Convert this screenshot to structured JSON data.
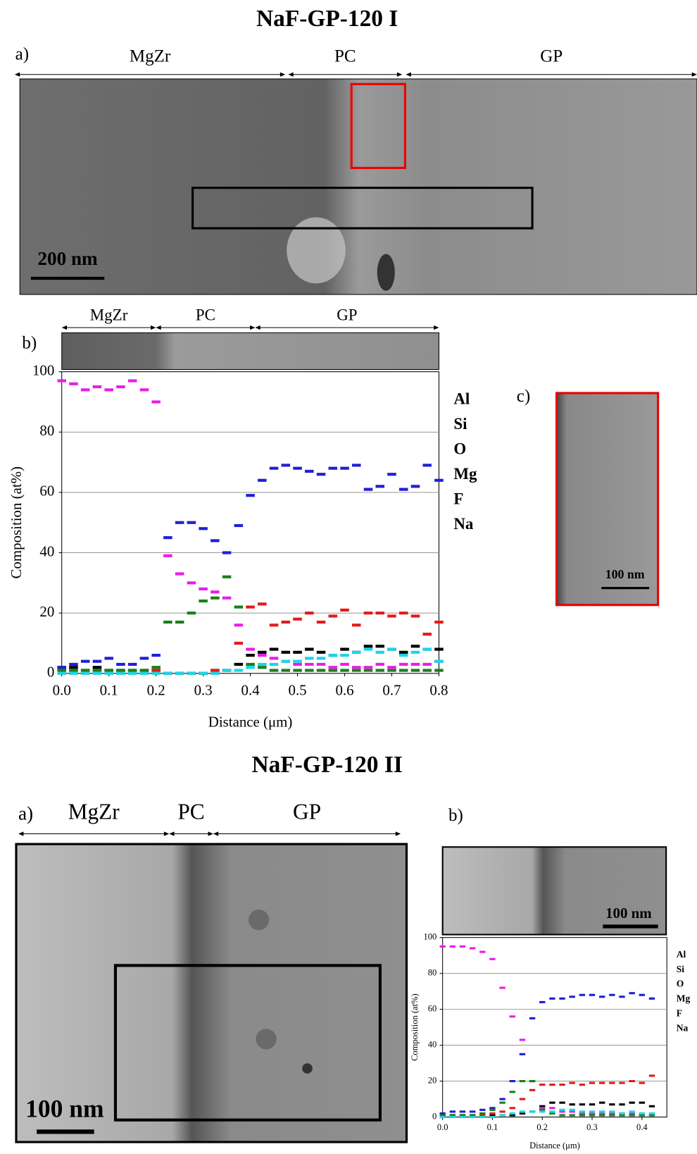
{
  "sections": [
    {
      "title": "NaF-GP-120 I",
      "panels": {
        "a": {
          "label": "a)",
          "regions": [
            "MgZr",
            "PC",
            "GP"
          ],
          "scale_bar": "200 nm"
        },
        "b": {
          "label": "b)",
          "regions": [
            "MgZr",
            "PC",
            "GP"
          ]
        },
        "c": {
          "label": "c)",
          "scale_bar": "100 nm"
        }
      }
    },
    {
      "title": "NaF-GP-120 II",
      "panels": {
        "a": {
          "label": "a)",
          "regions": [
            "MgZr",
            "PC",
            "GP"
          ],
          "scale_bar": "100 nm"
        },
        "b": {
          "label": "b)",
          "scale_bar": "100 nm"
        }
      }
    }
  ],
  "chart_data": [
    {
      "type": "scatter",
      "ylabel": "Composition (at%)",
      "xlabel": "Distance (μm)",
      "xlim": [
        0,
        0.8
      ],
      "ylim": [
        0,
        100
      ],
      "xticks": [
        {
          "value": 0,
          "label": "0.0"
        },
        0.1,
        0.2,
        0.3,
        0.4,
        0.5,
        0.6,
        0.7,
        0.8
      ],
      "yticks": [
        0,
        20,
        40,
        60,
        80,
        100
      ],
      "grid": true,
      "x": [
        0,
        0.025,
        0.05,
        0.075,
        0.1,
        0.125,
        0.15,
        0.175,
        0.2,
        0.225,
        0.25,
        0.275,
        0.3,
        0.325,
        0.35,
        0.375,
        0.4,
        0.425,
        0.45,
        0.475,
        0.5,
        0.525,
        0.55,
        0.575,
        0.6,
        0.625,
        0.65,
        0.675,
        0.7,
        0.725,
        0.75,
        0.775,
        0.8
      ],
      "series": [
        {
          "name": "Al",
          "color": "#000000",
          "values": [
            2,
            2,
            1,
            2,
            1,
            1,
            1,
            1,
            1,
            0,
            0,
            0,
            0,
            1,
            1,
            3,
            6,
            7,
            8,
            7,
            7,
            8,
            7,
            6,
            8,
            7,
            9,
            9,
            8,
            7,
            9,
            8,
            8
          ]
        },
        {
          "name": "Si",
          "color": "#e31a1c",
          "values": [
            1,
            1,
            1,
            1,
            1,
            1,
            1,
            1,
            1,
            0,
            0,
            0,
            0,
            1,
            1,
            10,
            22,
            23,
            16,
            17,
            18,
            20,
            17,
            19,
            21,
            16,
            20,
            20,
            19,
            20,
            19,
            13,
            17
          ]
        },
        {
          "name": "O",
          "color": "#1f1fd6",
          "values": [
            2,
            3,
            4,
            4,
            5,
            3,
            3,
            5,
            6,
            45,
            50,
            50,
            48,
            44,
            40,
            49,
            59,
            64,
            68,
            69,
            68,
            67,
            66,
            68,
            68,
            69,
            61,
            62,
            66,
            61,
            62,
            69,
            64
          ]
        },
        {
          "name": "Mg",
          "color": "#e81ee8",
          "values": [
            97,
            96,
            94,
            95,
            94,
            95,
            97,
            94,
            90,
            39,
            33,
            30,
            28,
            27,
            25,
            16,
            8,
            6,
            5,
            4,
            3,
            3,
            3,
            2,
            3,
            2,
            2,
            3,
            2,
            3,
            3,
            3,
            4
          ]
        },
        {
          "name": "F",
          "color": "#1a7f1a",
          "values": [
            1,
            1,
            1,
            1,
            1,
            1,
            1,
            1,
            2,
            17,
            17,
            20,
            24,
            25,
            32,
            22,
            3,
            2,
            1,
            1,
            1,
            1,
            1,
            1,
            1,
            1,
            1,
            1,
            1,
            1,
            1,
            1,
            1
          ]
        },
        {
          "name": "Na",
          "color": "#19d6e6",
          "values": [
            0,
            0,
            0,
            0,
            0,
            0,
            0,
            0,
            0,
            0,
            0,
            0,
            0,
            0,
            1,
            1,
            2,
            3,
            3,
            4,
            4,
            5,
            5,
            6,
            6,
            7,
            8,
            7,
            8,
            6,
            7,
            8,
            4
          ]
        }
      ]
    },
    {
      "type": "scatter",
      "ylabel": "Composition (at%)",
      "xlabel": "Distance (μm)",
      "xlim": [
        0,
        0.45
      ],
      "ylim": [
        0,
        100
      ],
      "xticks": [
        {
          "value": 0,
          "label": "0.0"
        },
        0.1,
        0.2,
        0.3,
        0.4
      ],
      "yticks": [
        0,
        20,
        40,
        60,
        80,
        100
      ],
      "grid": true,
      "x": [
        0,
        0.02,
        0.04,
        0.06,
        0.08,
        0.1,
        0.12,
        0.14,
        0.16,
        0.18,
        0.2,
        0.22,
        0.24,
        0.26,
        0.28,
        0.3,
        0.32,
        0.34,
        0.36,
        0.38,
        0.4,
        0.42
      ],
      "series": [
        {
          "name": "Al",
          "color": "#000000",
          "values": [
            1,
            1,
            1,
            1,
            1,
            1,
            1,
            1,
            2,
            3,
            6,
            8,
            8,
            7,
            7,
            7,
            8,
            7,
            7,
            8,
            8,
            6
          ]
        },
        {
          "name": "Si",
          "color": "#e31a1c",
          "values": [
            1,
            1,
            1,
            1,
            1,
            2,
            3,
            5,
            10,
            15,
            18,
            18,
            18,
            19,
            18,
            19,
            19,
            19,
            19,
            20,
            19,
            23
          ]
        },
        {
          "name": "O",
          "color": "#1f1fd6",
          "values": [
            2,
            3,
            3,
            3,
            4,
            5,
            10,
            20,
            35,
            55,
            64,
            66,
            66,
            67,
            68,
            68,
            67,
            68,
            67,
            69,
            68,
            66
          ]
        },
        {
          "name": "Mg",
          "color": "#e81ee8",
          "values": [
            95,
            95,
            95,
            94,
            92,
            88,
            72,
            56,
            43,
            20,
            5,
            5,
            3,
            3,
            2,
            2,
            2,
            2,
            2,
            2,
            1,
            1
          ]
        },
        {
          "name": "F",
          "color": "#1a7f1a",
          "values": [
            1,
            1,
            1,
            1,
            2,
            4,
            8,
            14,
            20,
            20,
            4,
            2,
            1,
            1,
            1,
            1,
            1,
            1,
            1,
            1,
            1,
            1
          ]
        },
        {
          "name": "Na",
          "color": "#19d6e6",
          "values": [
            0,
            0,
            0,
            0,
            0,
            0,
            1,
            2,
            3,
            3,
            3,
            3,
            4,
            4,
            3,
            3,
            3,
            3,
            2,
            3,
            2,
            2
          ]
        }
      ]
    }
  ]
}
